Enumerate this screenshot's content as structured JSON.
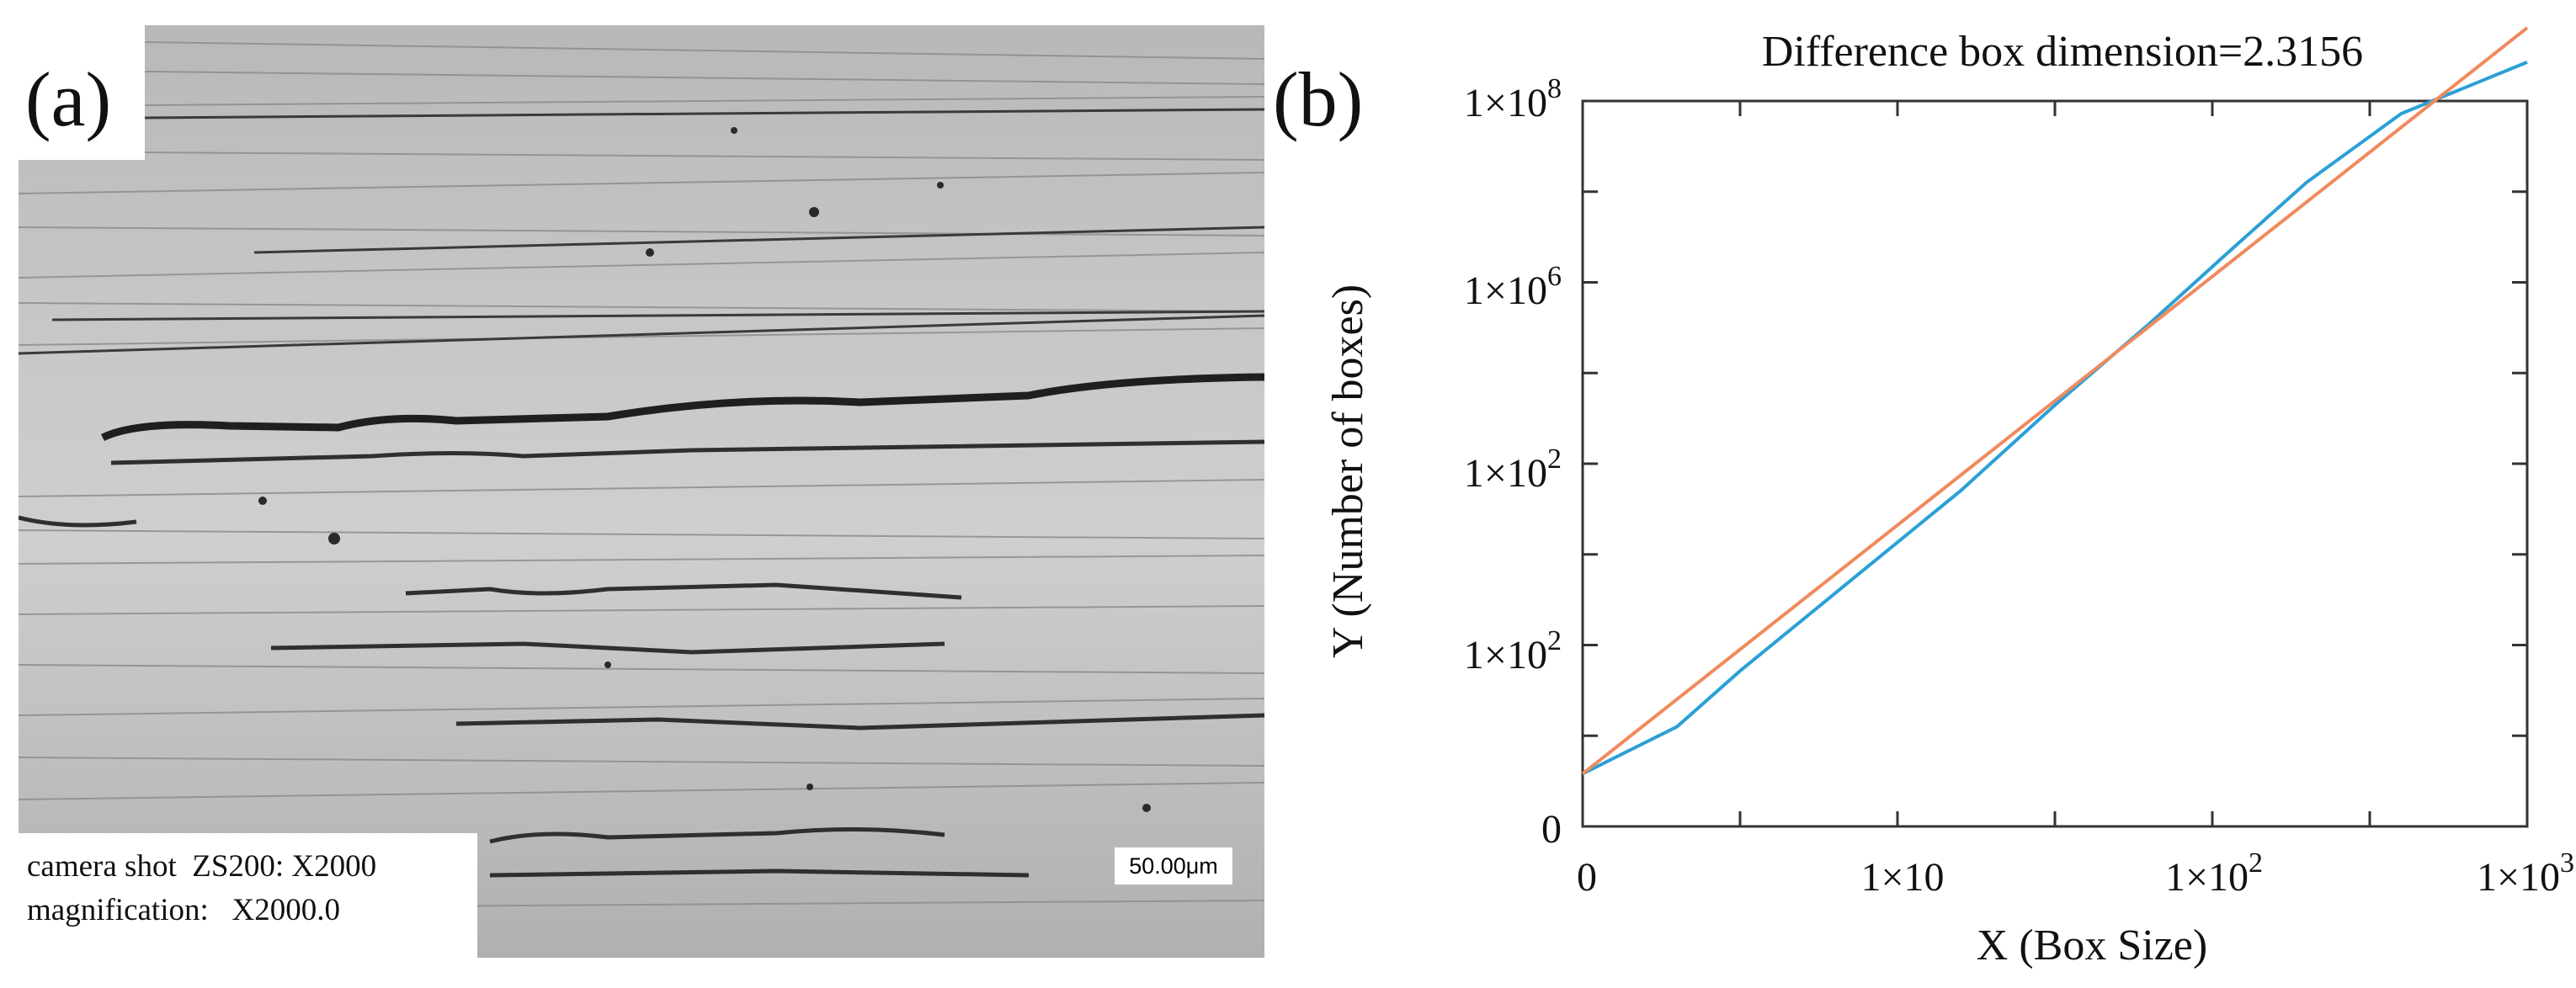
{
  "panel_a": {
    "label": "(a)",
    "caption_line1": "camera shot  ZS200: X2000",
    "caption_line2": "magnification:   X2000.0",
    "scale_bar": "50.00μm"
  },
  "panel_b": {
    "label": "(b)"
  },
  "chart_data": {
    "type": "line",
    "title": "Difference box dimension=2.3156",
    "xlabel": "X (Box Size)",
    "ylabel": "Y (Number of boxes)",
    "x_scale": "log",
    "y_scale": "log",
    "x_tick_labels": [
      {
        "base": "0",
        "exp": ""
      },
      {
        "base": "1×10",
        "exp": ""
      },
      {
        "base": "1×10",
        "exp": "2"
      },
      {
        "base": "1×10",
        "exp": "3"
      }
    ],
    "y_tick_labels": [
      {
        "base": "0",
        "exp": ""
      },
      {
        "base": "1×10",
        "exp": "2"
      },
      {
        "base": "1×10",
        "exp": "2"
      },
      {
        "base": "1×10",
        "exp": "6"
      },
      {
        "base": "1×10",
        "exp": "8"
      }
    ],
    "xlim": [
      0,
      3
    ],
    "ylim": [
      0,
      8
    ],
    "series": [
      {
        "color": "#2aa0d6",
        "x": [
          0,
          0.3,
          0.5,
          0.9,
          1.2,
          1.5,
          1.8,
          2.05,
          2.3,
          2.6,
          3.0
        ],
        "y": [
          0.3,
          0.85,
          1.5,
          2.7,
          3.6,
          4.6,
          5.55,
          6.38,
          7.2,
          8.0,
          8.6
        ]
      },
      {
        "color": "#f08a5d",
        "x": [
          0,
          3.0
        ],
        "y": [
          0.3,
          9.0
        ]
      }
    ],
    "grid": false,
    "colors": {
      "fit_line": "#f08a5d",
      "data_line": "#2aa0d6"
    }
  }
}
